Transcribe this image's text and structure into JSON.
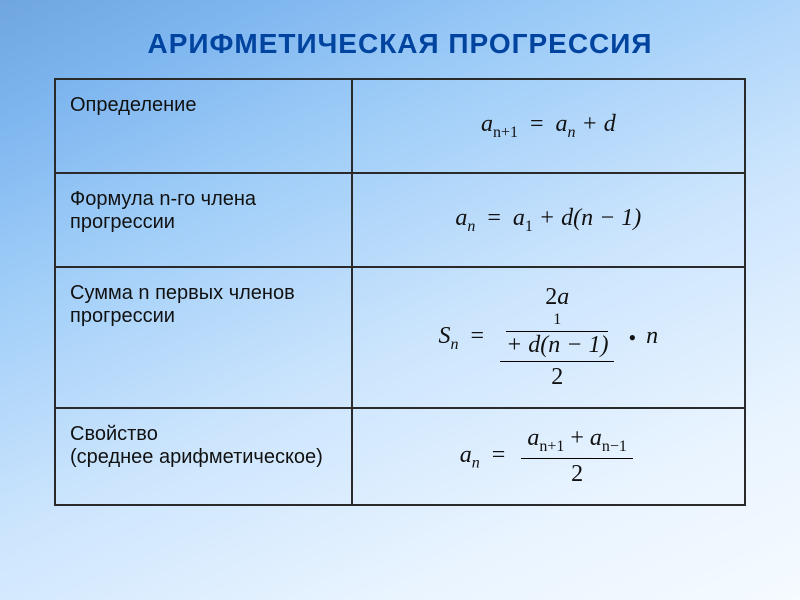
{
  "title": "АРИФМЕТИЧЕСКАЯ ПРОГРЕССИЯ",
  "title_color": "#0144a0",
  "title_fontsize": 28,
  "rows": {
    "definition": {
      "label": "Определение",
      "label_fontsize": 20,
      "formula_parts": {
        "lhs_base": "a",
        "lhs_sub": "n+1",
        "rhs_base": "a",
        "rhs_sub": "n",
        "rhs_tail": " + d"
      },
      "formula_text": "a_{n+1} = a_n + d",
      "formula_fontsize": 24
    },
    "nth_term": {
      "label": "Формула n-го члена прогрессии",
      "formula_parts": {
        "lhs_base": "a",
        "lhs_sub": "n",
        "rhs_base": "a",
        "rhs_sub": "1",
        "rhs_tail": " + d(n − 1)"
      },
      "formula_text": "a_n = a_1 + d(n − 1)"
    },
    "sum": {
      "label": "Сумма n первых членов прогрессии",
      "formula_parts": {
        "lhs_base": "S",
        "lhs_sub": "n",
        "frac_num_prefix": "2",
        "frac_num_a": "a",
        "frac_num_a_sub": "1",
        "frac_num_tail": " + d(n − 1)",
        "frac_den": "2",
        "tail_mul": "n"
      },
      "formula_text": "S_n = (2a_1 + d(n − 1)) / 2 · n"
    },
    "property": {
      "label_line1": "Свойство",
      "label_line2": "(среднее арифметическое)",
      "formula_parts": {
        "lhs_base": "a",
        "lhs_sub": "n",
        "num_a1": "a",
        "num_a1_sub": "n+1",
        "num_a2": "a",
        "num_a2_sub": "n−1",
        "frac_den": "2"
      },
      "formula_text": "a_n = (a_{n+1} + a_{n−1}) / 2"
    }
  },
  "colors": {
    "border": "#2a2a2a",
    "text": "#111111",
    "bg_gradient_from": "#6fa6e0",
    "bg_gradient_to": "#f5fbff"
  }
}
